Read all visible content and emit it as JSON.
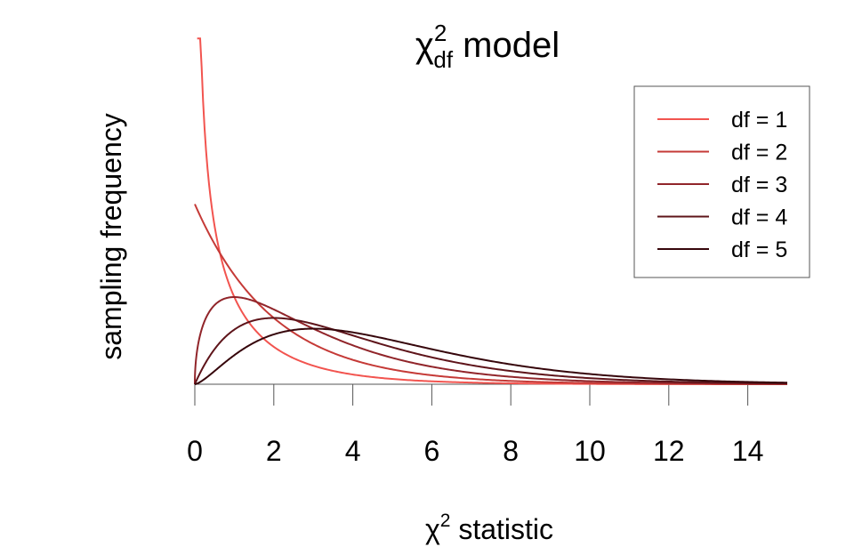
{
  "chart_data": {
    "type": "line",
    "title": {
      "symbol": "χ",
      "superscript": "2",
      "subscript": "df",
      "rest": " model"
    },
    "xlabel": {
      "symbol": "χ",
      "superscript": "2",
      "rest": " statistic"
    },
    "ylabel": "sampling frequency",
    "x_ticks": [
      "0",
      "2",
      "4",
      "6",
      "8",
      "10",
      "12",
      "14"
    ],
    "xlim": [
      0,
      15
    ],
    "ylim": [
      0,
      0.8
    ],
    "x_axis_range": [
      0,
      14
    ],
    "y_axis_visible": false,
    "grid": false,
    "legend_position": "top-right",
    "series": [
      {
        "name": "df = 1",
        "df": 1,
        "color": "#f2544f"
      },
      {
        "name": "df = 2",
        "df": 2,
        "color": "#c53a37"
      },
      {
        "name": "df = 3",
        "df": 3,
        "color": "#91252a"
      },
      {
        "name": "df = 4",
        "df": 4,
        "color": "#5e141a"
      },
      {
        "name": "df = 5",
        "df": 5,
        "color": "#36060b"
      }
    ]
  }
}
